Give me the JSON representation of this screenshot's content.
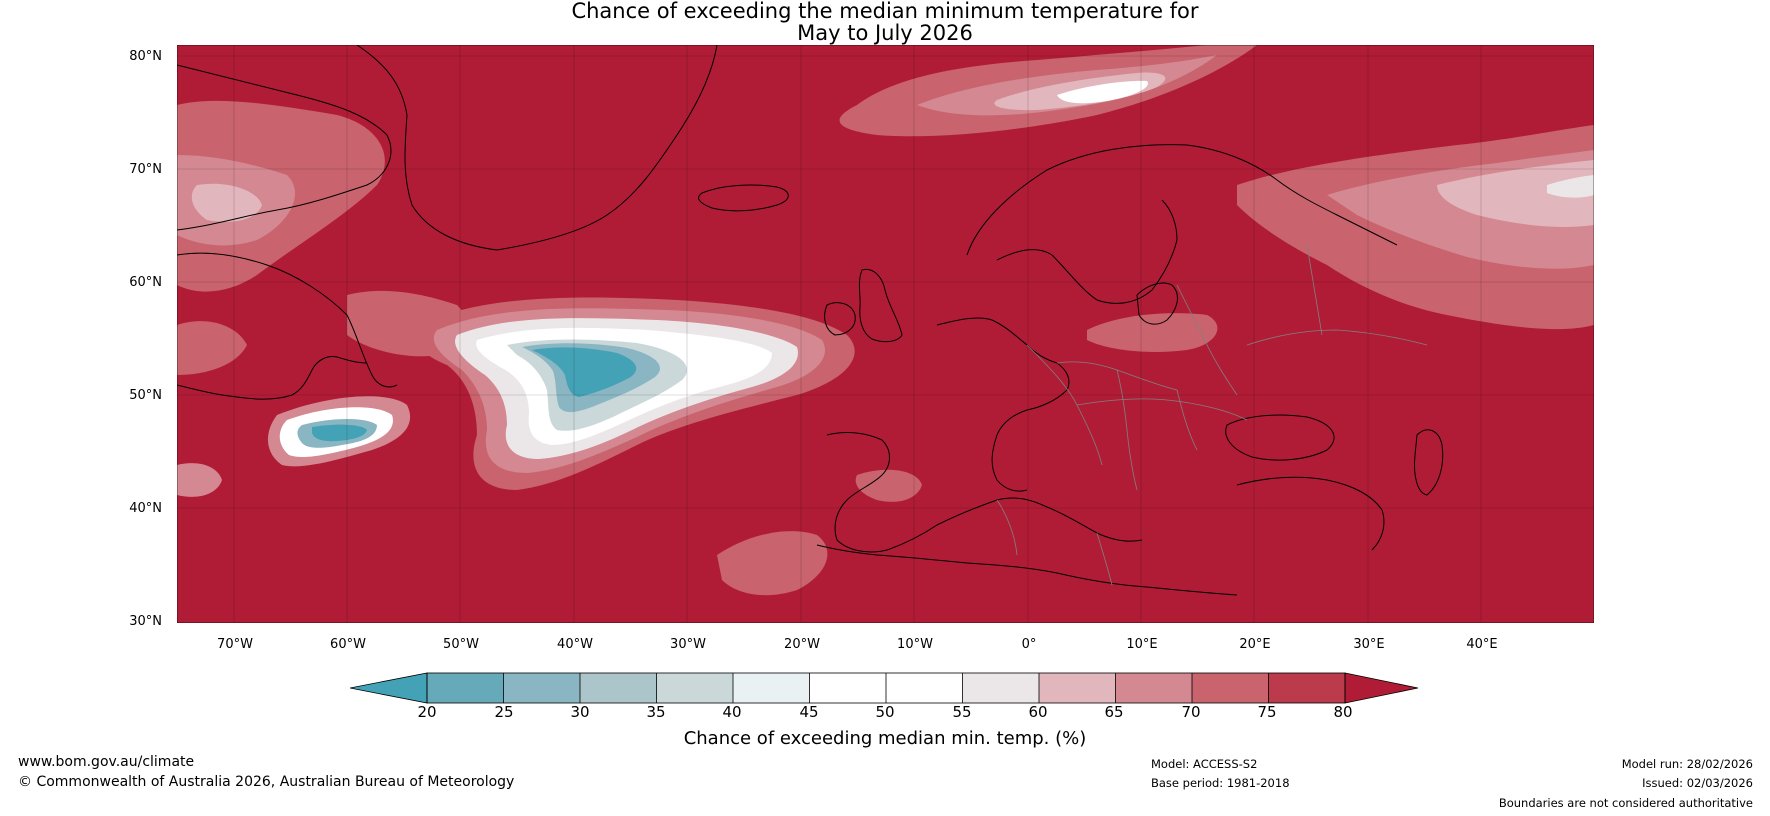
{
  "title": {
    "line1": "Chance of exceeding the median minimum temperature for",
    "line2": "May to July 2026"
  },
  "map": {
    "background_color": "#b01c36",
    "latitude_labels": [
      "80°N",
      "70°N",
      "60°N",
      "50°N",
      "40°N",
      "30°N"
    ],
    "longitude_labels": [
      "70°W",
      "60°W",
      "50°W",
      "40°W",
      "30°W",
      "20°W",
      "10°W",
      "0°",
      "10°E",
      "20°E",
      "30°E",
      "40°E"
    ]
  },
  "colorbar": {
    "ticks": [
      "20",
      "25",
      "30",
      "35",
      "40",
      "45",
      "50",
      "55",
      "60",
      "65",
      "70",
      "75",
      "80"
    ],
    "colors": [
      "#44a2b6",
      "#66a9b8",
      "#89b6c2",
      "#abc5cb",
      "#cad8da",
      "#e9f1f2",
      "#ffffff",
      "#ffffff",
      "#ebe7e8",
      "#e2b6bd",
      "#d48891",
      "#c9636e",
      "#bb3a4b",
      "#b01c36"
    ],
    "title": "Chance of exceeding median min. temp. (%)"
  },
  "footer": {
    "website": "www.bom.gov.au/climate",
    "copyright": "© Commonwealth of Australia 2026, Australian Bureau of Meteorology",
    "model": "Model: ACCESS-S2",
    "base_period": "Base period: 1981-2018",
    "model_run": "Model run: 28/02/2026",
    "issued": "Issued: 02/03/2026",
    "disclaimer": "Boundaries are not considered authoritative"
  }
}
